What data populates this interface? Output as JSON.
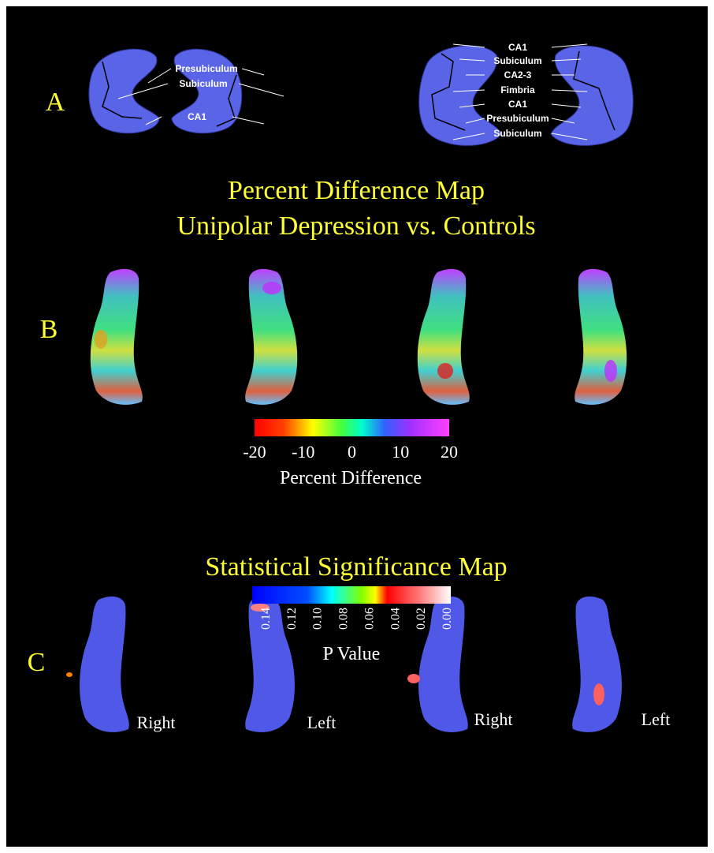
{
  "panel_a": {
    "letter": "A",
    "left_labels": [
      "Presubiculum",
      "Subiculum",
      "CA1"
    ],
    "right_labels": [
      "CA1",
      "Subiculum",
      "CA2-3",
      "Fimbria",
      "CA1",
      "Presubiculum",
      "Subiculum"
    ]
  },
  "panel_b": {
    "letter": "B",
    "title_lines": [
      "Percent Difference Map",
      "Unipolar Depression vs. Controls"
    ],
    "colorbar": {
      "ticks": [
        "-20",
        "-10",
        "0",
        "10",
        "20"
      ],
      "label": "Percent Difference"
    }
  },
  "panel_c": {
    "letter": "C",
    "title": "Statistical Significance Map",
    "view_labels": [
      "Right",
      "Left",
      "Right",
      "Left"
    ],
    "colorbar": {
      "ticks": [
        "0.14",
        "0.12",
        "0.10",
        "0.08",
        "0.06",
        "0.04",
        "0.02",
        "0.00"
      ],
      "label": "P Value"
    }
  }
}
